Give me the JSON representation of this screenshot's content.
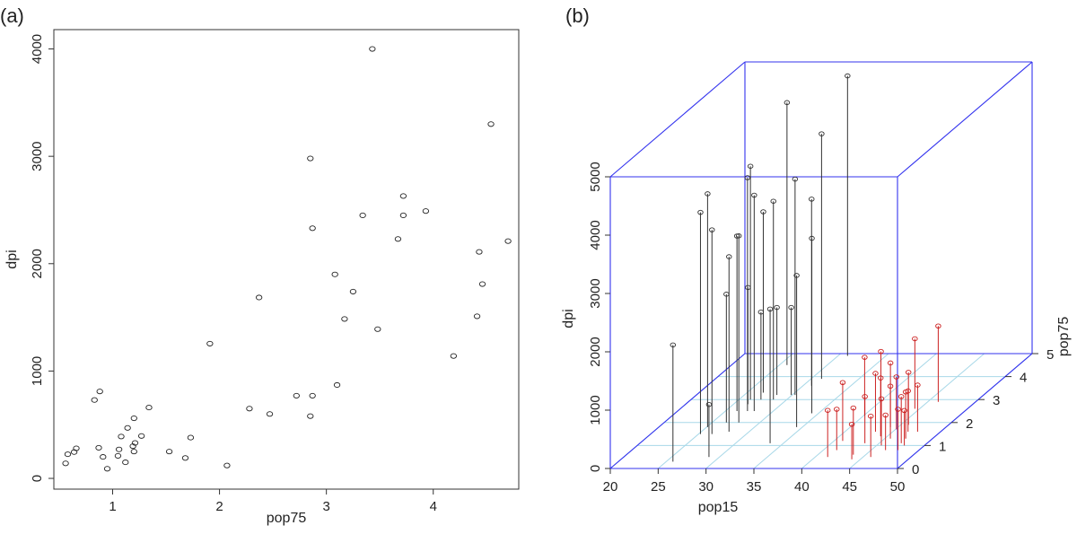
{
  "chart_data": [
    {
      "type": "scatter",
      "panel_label": "(a)",
      "xlabel": "pop75",
      "ylabel": "dpi",
      "xlim": [
        0.45,
        4.8
      ],
      "ylim": [
        -100,
        4180
      ],
      "xticks": [
        1,
        2,
        3,
        4
      ],
      "yticks": [
        0,
        1000,
        2000,
        3000,
        4000
      ],
      "points": [
        [
          0.56,
          140
        ],
        [
          0.58,
          225
        ],
        [
          0.64,
          245
        ],
        [
          0.66,
          280
        ],
        [
          0.83,
          730
        ],
        [
          0.87,
          285
        ],
        [
          0.88,
          810
        ],
        [
          0.91,
          200
        ],
        [
          0.95,
          90
        ],
        [
          1.05,
          210
        ],
        [
          1.06,
          270
        ],
        [
          1.08,
          390
        ],
        [
          1.12,
          150
        ],
        [
          1.14,
          470
        ],
        [
          1.19,
          300
        ],
        [
          1.2,
          560
        ],
        [
          1.2,
          250
        ],
        [
          1.21,
          330
        ],
        [
          1.27,
          395
        ],
        [
          1.34,
          660
        ],
        [
          1.53,
          250
        ],
        [
          1.68,
          190
        ],
        [
          1.73,
          380
        ],
        [
          1.91,
          1255
        ],
        [
          2.07,
          120
        ],
        [
          2.28,
          650
        ],
        [
          2.37,
          1685
        ],
        [
          2.47,
          600
        ],
        [
          2.72,
          770
        ],
        [
          2.85,
          580
        ],
        [
          2.85,
          2980
        ],
        [
          2.87,
          2330
        ],
        [
          2.87,
          770
        ],
        [
          3.08,
          1900
        ],
        [
          3.1,
          870
        ],
        [
          3.17,
          1485
        ],
        [
          3.25,
          1740
        ],
        [
          3.34,
          2450
        ],
        [
          3.43,
          4000
        ],
        [
          3.48,
          1390
        ],
        [
          3.67,
          2230
        ],
        [
          3.72,
          2630
        ],
        [
          3.72,
          2450
        ],
        [
          3.93,
          2490
        ],
        [
          4.19,
          1140
        ],
        [
          4.41,
          1510
        ],
        [
          4.43,
          2110
        ],
        [
          4.46,
          1810
        ],
        [
          4.54,
          3300
        ],
        [
          4.7,
          2210
        ]
      ]
    },
    {
      "type": "scatter3d",
      "panel_label": "(b)",
      "xlabel": "pop15",
      "ylabel": "pop75",
      "zlabel": "dpi",
      "xlim": [
        20,
        50
      ],
      "ylim": [
        0,
        5
      ],
      "zlim": [
        0,
        5000
      ],
      "xticks": [
        20,
        25,
        30,
        35,
        40,
        45,
        50
      ],
      "yticks": [
        0,
        1,
        2,
        3,
        4,
        5
      ],
      "zticks": [
        0,
        1000,
        2000,
        3000,
        4000,
        5000
      ],
      "colors": {
        "box": "#3333ee",
        "grid": "#a8d8e8",
        "high_dpi": "#333333",
        "low_dpi": "#cc2222"
      },
      "high_series_points": [
        [
          25.1,
          1.8,
          4000
        ],
        [
          25.2,
          1.5,
          3800
        ],
        [
          25.8,
          4.5,
          4500
        ],
        [
          26.2,
          3.0,
          4000
        ],
        [
          26.2,
          2.5,
          3000
        ],
        [
          26.4,
          1.5,
          3500
        ],
        [
          26.7,
          3.3,
          3100
        ],
        [
          27.3,
          2.5,
          4000
        ],
        [
          27.8,
          2.0,
          3200
        ],
        [
          27.9,
          1.6,
          3000
        ],
        [
          28.0,
          2.5,
          3700
        ],
        [
          28.6,
          3.0,
          3400
        ],
        [
          30.3,
          3.2,
          3700
        ],
        [
          30.9,
          3.6,
          3200
        ],
        [
          31.0,
          4.9,
          4800
        ],
        [
          31.1,
          3.9,
          4200
        ],
        [
          33.6,
          1.1,
          2300
        ],
        [
          34.3,
          2.4,
          3000
        ],
        [
          34.4,
          1.8,
          2600
        ],
        [
          25.7,
          0.3,
          2000
        ],
        [
          26.5,
          2.8,
          2000
        ],
        [
          26.5,
          2.0,
          2200
        ],
        [
          27.3,
          3.0,
          1500
        ],
        [
          28.4,
          3.2,
          1500
        ],
        [
          29.9,
          3.2,
          1500
        ],
        [
          28.9,
          0.5,
          900
        ]
      ],
      "low_series_points": [
        [
          40.1,
          2.3,
          1000
        ],
        [
          40.9,
          1.2,
          1000
        ],
        [
          41.3,
          0.5,
          800
        ],
        [
          41.4,
          0.8,
          700
        ],
        [
          41.8,
          2.3,
          1100
        ],
        [
          43.2,
          1.6,
          1000
        ],
        [
          43.5,
          1.1,
          800
        ],
        [
          43.7,
          0.6,
          800
        ],
        [
          44.1,
          0.4,
          600
        ],
        [
          44.2,
          1.8,
          1100
        ],
        [
          44.3,
          1.4,
          1000
        ],
        [
          44.5,
          2.6,
          1200
        ],
        [
          45.1,
          1.7,
          900
        ],
        [
          45.5,
          1.0,
          800
        ],
        [
          45.6,
          1.3,
          900
        ],
        [
          45.8,
          1.9,
          900
        ],
        [
          46.6,
          1.6,
          700
        ],
        [
          47.2,
          1.3,
          800
        ],
        [
          47.3,
          1.1,
          800
        ],
        [
          47.6,
          1.6,
          800
        ],
        [
          47.8,
          0.8,
          700
        ],
        [
          47.9,
          1.0,
          600
        ],
        [
          45.8,
          0.5,
          700
        ],
        [
          46.1,
          2.9,
          1300
        ],
        [
          46.5,
          0.8,
          600
        ]
      ]
    }
  ]
}
